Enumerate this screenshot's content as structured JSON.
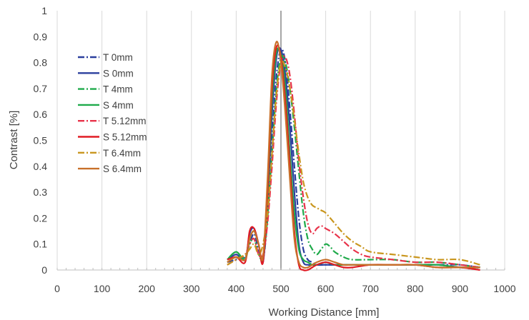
{
  "chart_data": {
    "type": "line",
    "title": "",
    "xlabel": "Working Distance [mm]",
    "ylabel": "Contrast [%]",
    "xlim": [
      0,
      1000
    ],
    "ylim": [
      0,
      1
    ],
    "x_ticks": [
      "0",
      "100",
      "200",
      "300",
      "400",
      "500",
      "600",
      "700",
      "800",
      "900",
      "1000"
    ],
    "y_ticks": [
      "0",
      "0.1",
      "0.2",
      "0.3",
      "0.4",
      "0.5",
      "0.6",
      "0.7",
      "0.8",
      "0.9",
      "1"
    ],
    "grid": "vertical",
    "reference_line_x": 500,
    "legend_position": "upper-left",
    "series": [
      {
        "name": "T 0mm",
        "color": "#2b3f9e",
        "dash": "dashdot",
        "x": [
          380,
          400,
          420,
          430,
          440,
          450,
          460,
          470,
          480,
          490,
          500,
          510,
          520,
          530,
          540,
          550,
          560,
          570,
          580,
          600,
          620,
          640,
          660,
          700,
          750,
          800,
          850,
          900,
          945
        ],
        "y": [
          0.03,
          0.04,
          0.05,
          0.1,
          0.14,
          0.08,
          0.04,
          0.2,
          0.5,
          0.75,
          0.85,
          0.8,
          0.62,
          0.4,
          0.2,
          0.08,
          0.04,
          0.03,
          0.02,
          0.02,
          0.02,
          0.02,
          0.02,
          0.02,
          0.02,
          0.02,
          0.02,
          0.02,
          0.01
        ]
      },
      {
        "name": "S 0mm",
        "color": "#2b3f9e",
        "dash": "solid",
        "x": [
          380,
          400,
          420,
          430,
          440,
          450,
          460,
          470,
          480,
          490,
          500,
          510,
          520,
          530,
          540,
          550,
          560,
          570,
          580,
          600,
          620,
          640,
          660,
          700,
          750,
          800,
          850,
          900,
          945
        ],
        "y": [
          0.04,
          0.06,
          0.04,
          0.14,
          0.16,
          0.1,
          0.03,
          0.25,
          0.6,
          0.82,
          0.85,
          0.75,
          0.55,
          0.3,
          0.1,
          0.03,
          0.02,
          0.02,
          0.02,
          0.02,
          0.02,
          0.02,
          0.02,
          0.02,
          0.02,
          0.02,
          0.02,
          0.01,
          0.01
        ]
      },
      {
        "name": "T 4mm",
        "color": "#1faa4a",
        "dash": "dashdot",
        "x": [
          380,
          400,
          420,
          430,
          440,
          450,
          460,
          470,
          480,
          490,
          500,
          510,
          520,
          530,
          540,
          550,
          560,
          570,
          580,
          590,
          600,
          610,
          620,
          640,
          660,
          700,
          750,
          800,
          850,
          900,
          945
        ],
        "y": [
          0.03,
          0.05,
          0.05,
          0.1,
          0.12,
          0.06,
          0.05,
          0.2,
          0.45,
          0.7,
          0.82,
          0.8,
          0.7,
          0.55,
          0.38,
          0.22,
          0.12,
          0.08,
          0.06,
          0.08,
          0.1,
          0.09,
          0.07,
          0.05,
          0.04,
          0.04,
          0.04,
          0.03,
          0.03,
          0.02,
          0.01
        ]
      },
      {
        "name": "S 4mm",
        "color": "#1faa4a",
        "dash": "solid",
        "x": [
          380,
          400,
          420,
          430,
          440,
          450,
          460,
          470,
          480,
          490,
          500,
          510,
          520,
          530,
          540,
          550,
          560,
          570,
          580,
          600,
          620,
          640,
          660,
          700,
          750,
          800,
          850,
          900,
          945
        ],
        "y": [
          0.04,
          0.07,
          0.04,
          0.12,
          0.15,
          0.1,
          0.04,
          0.28,
          0.65,
          0.84,
          0.83,
          0.7,
          0.45,
          0.22,
          0.08,
          0.04,
          0.03,
          0.02,
          0.02,
          0.03,
          0.02,
          0.02,
          0.02,
          0.02,
          0.02,
          0.02,
          0.02,
          0.01,
          0.01
        ]
      },
      {
        "name": "T 5.12mm",
        "color": "#e8334a",
        "dash": "dashdot",
        "x": [
          380,
          400,
          420,
          430,
          440,
          450,
          460,
          470,
          480,
          490,
          500,
          510,
          520,
          530,
          540,
          550,
          560,
          570,
          580,
          590,
          600,
          620,
          640,
          660,
          680,
          700,
          750,
          800,
          850,
          900,
          945
        ],
        "y": [
          0.02,
          0.04,
          0.06,
          0.1,
          0.12,
          0.06,
          0.06,
          0.18,
          0.4,
          0.65,
          0.8,
          0.82,
          0.75,
          0.6,
          0.42,
          0.28,
          0.18,
          0.14,
          0.16,
          0.17,
          0.16,
          0.14,
          0.11,
          0.08,
          0.06,
          0.05,
          0.04,
          0.03,
          0.03,
          0.02,
          0.01
        ]
      },
      {
        "name": "S 5.12mm",
        "color": "#e01b24",
        "dash": "solid",
        "x": [
          380,
          400,
          420,
          430,
          440,
          450,
          460,
          470,
          480,
          490,
          500,
          510,
          520,
          530,
          540,
          550,
          560,
          570,
          580,
          600,
          620,
          640,
          660,
          700,
          750,
          800,
          850,
          900,
          945
        ],
        "y": [
          0.04,
          0.05,
          0.03,
          0.15,
          0.16,
          0.1,
          0.03,
          0.3,
          0.7,
          0.86,
          0.82,
          0.65,
          0.4,
          0.15,
          0.02,
          0.0,
          0.0,
          0.01,
          0.02,
          0.03,
          0.02,
          0.01,
          0.01,
          0.02,
          0.02,
          0.02,
          0.01,
          0.01,
          0.0
        ]
      },
      {
        "name": "T 6.4mm",
        "color": "#c9961e",
        "dash": "dashdot",
        "x": [
          380,
          400,
          420,
          430,
          440,
          450,
          460,
          470,
          480,
          490,
          500,
          510,
          520,
          530,
          540,
          550,
          560,
          570,
          580,
          590,
          600,
          620,
          640,
          660,
          680,
          700,
          750,
          800,
          850,
          900,
          945
        ],
        "y": [
          0.02,
          0.04,
          0.06,
          0.08,
          0.1,
          0.06,
          0.1,
          0.22,
          0.45,
          0.68,
          0.8,
          0.78,
          0.7,
          0.58,
          0.45,
          0.34,
          0.28,
          0.25,
          0.24,
          0.23,
          0.22,
          0.18,
          0.14,
          0.11,
          0.09,
          0.07,
          0.06,
          0.05,
          0.04,
          0.04,
          0.02
        ]
      },
      {
        "name": "S 6.4mm",
        "color": "#c8702a",
        "dash": "solid",
        "x": [
          380,
          400,
          420,
          430,
          440,
          450,
          460,
          470,
          480,
          490,
          500,
          510,
          520,
          530,
          540,
          550,
          560,
          570,
          580,
          600,
          620,
          640,
          660,
          700,
          750,
          800,
          850,
          900,
          945
        ],
        "y": [
          0.03,
          0.05,
          0.04,
          0.12,
          0.15,
          0.1,
          0.05,
          0.35,
          0.75,
          0.88,
          0.8,
          0.6,
          0.35,
          0.12,
          0.03,
          0.01,
          0.01,
          0.02,
          0.03,
          0.04,
          0.03,
          0.02,
          0.02,
          0.02,
          0.02,
          0.02,
          0.01,
          0.01,
          0.01
        ]
      }
    ]
  }
}
